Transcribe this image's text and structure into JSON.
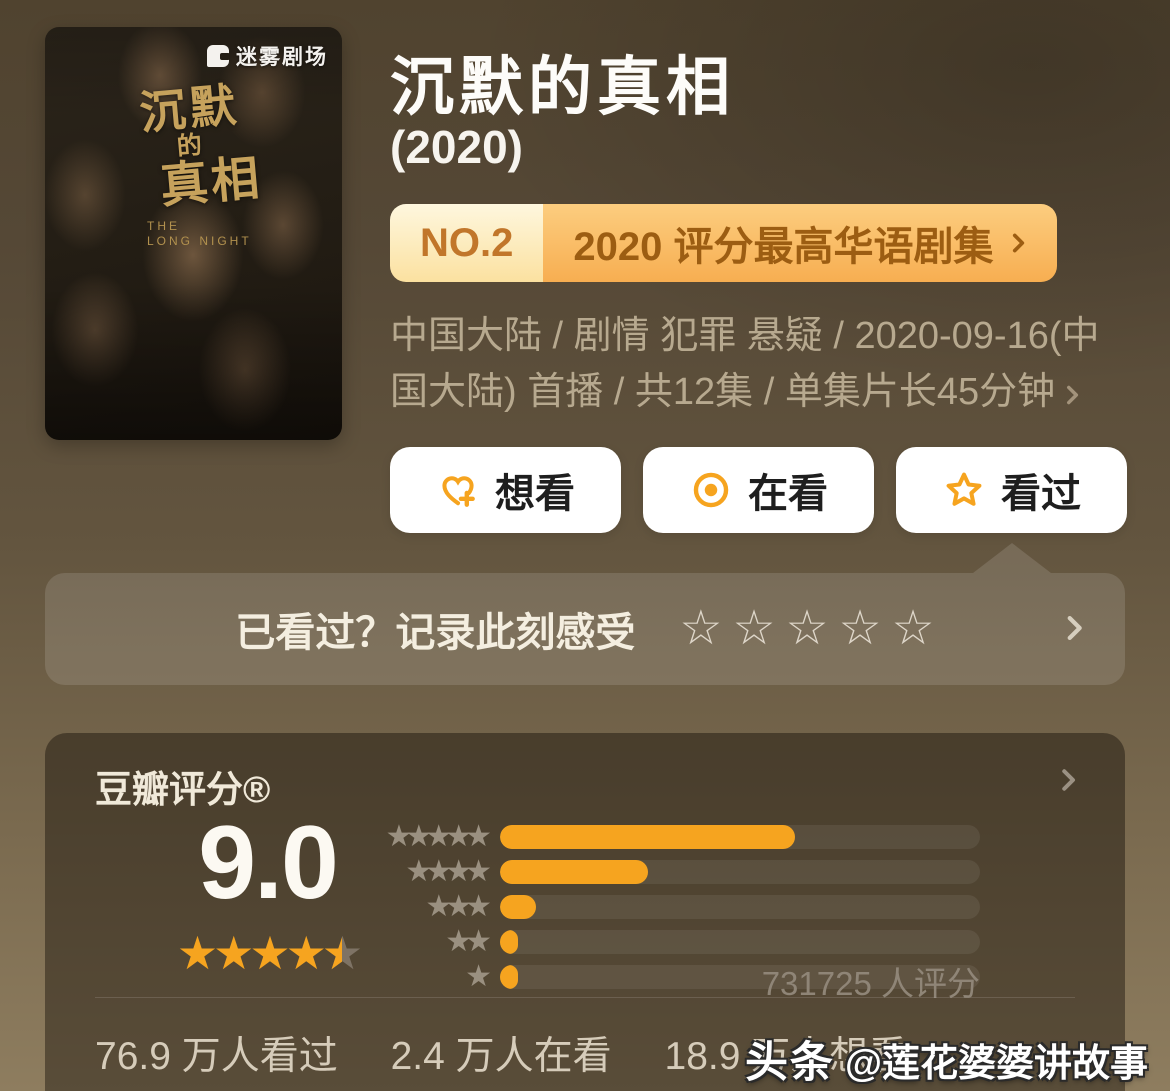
{
  "poster": {
    "channel_logo": "迷雾剧场",
    "calligraphy_line1": "沉默",
    "calligraphy_line2": "的",
    "calligraphy_line3": "真相",
    "subtitle_en_line1": "THE",
    "subtitle_en_line2": "LONG NIGHT"
  },
  "header": {
    "title": "沉默的真相",
    "year": "(2020)",
    "rank_badge": {
      "rank": "NO.2",
      "label": "2020 评分最高华语剧集"
    },
    "meta": "中国大陆 / 剧情 犯罪 悬疑 / 2020-09-16(中国大陆) 首播 / 共12集 / 单集片长45分钟"
  },
  "actions": [
    {
      "id": "wish",
      "icon": "heart-plus-icon",
      "label": "想看"
    },
    {
      "id": "watching",
      "icon": "circle-dot-icon",
      "label": "在看"
    },
    {
      "id": "watched",
      "icon": "star-outline-icon",
      "label": "看过"
    }
  ],
  "rate_prompt": {
    "text": "已看过？记录此刻感受",
    "star_count": 5
  },
  "chart_data": {
    "type": "bar",
    "title": "豆瓣评分®",
    "score": "9.0",
    "score_stars_of_5": 4.5,
    "categories": [
      "5星",
      "4星",
      "3星",
      "2星",
      "1星"
    ],
    "values": [
      61.5,
      30.8,
      7.4,
      3.8,
      3.8
    ],
    "value_unit": "percent_of_track_filled",
    "ratings_count_label": "731725 人评分",
    "legend_position": "left-star-pyramid",
    "colors": {
      "bar_fill": "#f6a41f",
      "bar_track": "rgba(255,255,255,0.07)",
      "pyramid_star": "#9a9080",
      "score_star": "#f6a41f"
    }
  },
  "footer_stats": [
    "76.9 万人看过",
    "2.4 万人在看",
    "18.9 万人想看"
  ],
  "watermark": {
    "brand": "头条",
    "handle": "@莲花婆婆讲故事"
  },
  "theme": {
    "accent_orange": "#f6a41f",
    "badge_text_dark": "#9c5d12",
    "badge_text_light": "#c1762a"
  }
}
